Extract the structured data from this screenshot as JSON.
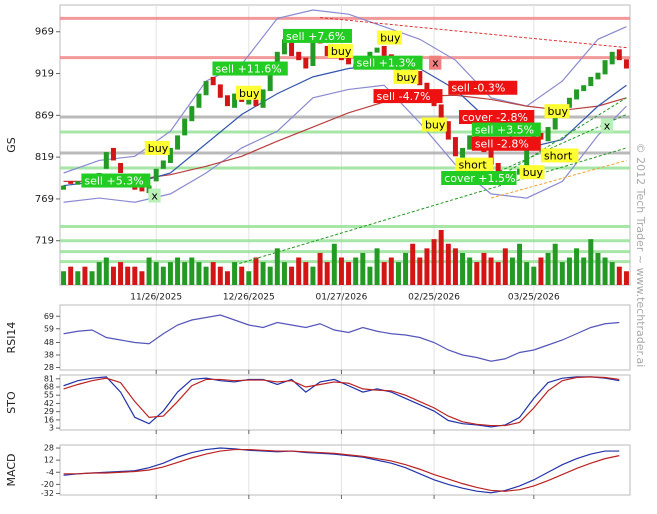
{
  "watermark": "© 2012 Tech Trader ~ www.techtrader.ai",
  "chart_data": [
    {
      "type": "candlestick",
      "y_label": "GS",
      "xlim": [
        -0.5,
        79.5
      ],
      "xticks": [
        {
          "value": 13,
          "label": "11/26/2025"
        },
        {
          "value": 26,
          "label": "12/26/2025"
        },
        {
          "value": 39,
          "label": "01/27/2026"
        },
        {
          "value": 52,
          "label": "02/25/2026"
        },
        {
          "value": 66,
          "label": "03/25/2026"
        }
      ],
      "ylim": [
        666,
        1001
      ],
      "yticks": [
        719,
        769,
        819,
        869,
        919,
        969
      ],
      "up_color": "#239a23",
      "down_color": "#d41515",
      "open": [
        780,
        790,
        786,
        795,
        790,
        796,
        805,
        830,
        812,
        798,
        792,
        784,
        776,
        790,
        805,
        812,
        828,
        845,
        862,
        878,
        893,
        915,
        906,
        893,
        878,
        898,
        882,
        903,
        878,
        898,
        918,
        942,
        962,
        945,
        938,
        928,
        962,
        952,
        938,
        948,
        938,
        926,
        928,
        935,
        944,
        952,
        942,
        922,
        928,
        938,
        922,
        908,
        898,
        882,
        862,
        843,
        818,
        828,
        848,
        842,
        828,
        812,
        802,
        792,
        798,
        804,
        828,
        848,
        838,
        852,
        868,
        878,
        888,
        898,
        904,
        912,
        918,
        930,
        948,
        936
      ],
      "close": [
        785,
        787,
        790,
        792,
        795,
        800,
        825,
        815,
        800,
        790,
        780,
        778,
        785,
        805,
        815,
        830,
        845,
        865,
        880,
        895,
        910,
        905,
        890,
        880,
        895,
        885,
        900,
        880,
        900,
        920,
        945,
        960,
        940,
        935,
        925,
        960,
        955,
        940,
        945,
        935,
        930,
        930,
        935,
        945,
        950,
        940,
        925,
        930,
        935,
        920,
        905,
        895,
        880,
        860,
        840,
        820,
        830,
        845,
        840,
        825,
        810,
        800,
        795,
        800,
        805,
        830,
        845,
        840,
        855,
        870,
        880,
        890,
        900,
        905,
        915,
        920,
        935,
        945,
        935,
        925
      ],
      "volume": [
        3,
        4,
        3,
        4,
        3,
        5,
        6,
        4,
        5,
        4,
        4,
        3,
        6,
        5,
        4,
        5,
        6,
        5,
        6,
        5,
        4,
        5,
        4,
        3,
        5,
        4,
        3,
        6,
        5,
        4,
        8,
        5,
        4,
        6,
        5,
        4,
        7,
        5,
        9,
        6,
        5,
        6,
        7,
        4,
        8,
        5,
        6,
        5,
        7,
        9,
        6,
        8,
        10,
        12,
        9,
        8,
        7,
        6,
        5,
        7,
        6,
        5,
        8,
        6,
        9,
        5,
        4,
        6,
        7,
        9,
        5,
        6,
        8,
        6,
        10,
        7,
        6,
        5,
        4,
        3
      ],
      "levels": [
        {
          "value": 985,
          "color": "#f08080"
        },
        {
          "value": 938,
          "color": "#f08080"
        },
        {
          "value": 867,
          "color": "#aaaaaa"
        },
        {
          "value": 824,
          "color": "#aaaaaa"
        },
        {
          "value": 806,
          "color": "#90e090"
        },
        {
          "value": 849,
          "color": "#90e090"
        },
        {
          "value": 736,
          "color": "#90e090"
        },
        {
          "value": 719,
          "color": "#90e090"
        },
        {
          "value": 706,
          "color": "#90e090"
        },
        {
          "value": 694,
          "color": "#90e090"
        }
      ],
      "lines": [
        {
          "color": "#8a8ad0",
          "x": [
            0,
            5,
            10,
            15,
            20,
            25,
            30,
            35,
            40,
            45,
            50,
            55,
            60,
            65,
            70,
            75,
            79
          ],
          "values": [
            800,
            815,
            820,
            850,
            910,
            930,
            985,
            995,
            990,
            975,
            960,
            935,
            890,
            880,
            910,
            960,
            975
          ]
        },
        {
          "color": "#8a8ad0",
          "x": [
            0,
            5,
            10,
            15,
            20,
            25,
            30,
            35,
            40,
            45,
            50,
            55,
            60,
            65,
            70,
            75,
            79
          ],
          "values": [
            765,
            770,
            765,
            775,
            800,
            830,
            850,
            890,
            900,
            905,
            860,
            810,
            775,
            770,
            790,
            845,
            880
          ]
        },
        {
          "color": "#b84040",
          "x": [
            0,
            5,
            10,
            15,
            20,
            25,
            30,
            35,
            40,
            45,
            50,
            55,
            60,
            65,
            70,
            75,
            79
          ],
          "values": [
            790,
            790,
            792,
            798,
            808,
            820,
            838,
            855,
            872,
            885,
            892,
            893,
            888,
            880,
            875,
            880,
            890
          ]
        },
        {
          "color": "#3355aa",
          "x": [
            0,
            5,
            10,
            15,
            20,
            25,
            30,
            35,
            40,
            45,
            50,
            55,
            60,
            65,
            70,
            75,
            79
          ],
          "values": [
            785,
            790,
            788,
            800,
            835,
            870,
            895,
            915,
            925,
            930,
            925,
            900,
            860,
            830,
            840,
            880,
            905
          ]
        }
      ],
      "trendlines": [
        {
          "x1": 36,
          "y1": 986,
          "x2": 79,
          "y2": 950,
          "color": "#dd3333"
        },
        {
          "x1": 24,
          "y1": 690,
          "x2": 79,
          "y2": 830,
          "color": "#229922"
        },
        {
          "x1": 58,
          "y1": 790,
          "x2": 79,
          "y2": 870,
          "color": "#229922"
        },
        {
          "x1": 62,
          "y1": 800,
          "x2": 79,
          "y2": 890,
          "color": "#229922"
        },
        {
          "x1": 60,
          "y1": 770,
          "x2": 79,
          "y2": 815,
          "color": "#f0a030"
        }
      ],
      "annotations": [
        {
          "text": "buy",
          "x": 11.4,
          "y": 830,
          "color": "#ffff33",
          "text_color": "#000000"
        },
        {
          "text": "sell +5.3%",
          "x": 2.5,
          "y": 791,
          "color": "#22cc22",
          "text_color": "#ffffff"
        },
        {
          "text": "x",
          "x": 11.9,
          "y": 773,
          "color": "#b8f0b8",
          "text_color": "#000000"
        },
        {
          "text": "sell +11.6%",
          "x": 20.9,
          "y": 925,
          "color": "#22cc22",
          "text_color": "#ffffff"
        },
        {
          "text": "buy",
          "x": 24.2,
          "y": 896,
          "color": "#ffff33",
          "text_color": "#000000"
        },
        {
          "text": "sell +7.6%",
          "x": 30.8,
          "y": 964,
          "color": "#22cc22",
          "text_color": "#ffffff"
        },
        {
          "text": "buy",
          "x": 37.1,
          "y": 946,
          "color": "#ffff33",
          "text_color": "#000000"
        },
        {
          "text": "buy",
          "x": 44,
          "y": 962,
          "color": "#ffff33",
          "text_color": "#000000"
        },
        {
          "text": "sell +1.3%",
          "x": 40.7,
          "y": 932,
          "color": "#22cc22",
          "text_color": "#ffffff"
        },
        {
          "text": "buy",
          "x": 46.3,
          "y": 915,
          "color": "#ffff33",
          "text_color": "#000000"
        },
        {
          "text": "x",
          "x": 51.3,
          "y": 932,
          "color": "#f08080",
          "text_color": "#000000"
        },
        {
          "text": "sell -4.7%",
          "x": 43.5,
          "y": 892,
          "color": "#ee1111",
          "text_color": "#ffffff"
        },
        {
          "text": "sell -0.3%",
          "x": 54,
          "y": 902,
          "color": "#ee1111",
          "text_color": "#ffffff"
        },
        {
          "text": "buy",
          "x": 50.3,
          "y": 858,
          "color": "#ffff33",
          "text_color": "#000000"
        },
        {
          "text": "cover -2.8%",
          "x": 55.5,
          "y": 867,
          "color": "#ee1111",
          "text_color": "#ffffff"
        },
        {
          "text": "sell +3.5%",
          "x": 57.3,
          "y": 852,
          "color": "#22cc22",
          "text_color": "#ffffff"
        },
        {
          "text": "sell -2.8%",
          "x": 57.3,
          "y": 835,
          "color": "#ee1111",
          "text_color": "#ffffff"
        },
        {
          "text": "short",
          "x": 55,
          "y": 810,
          "color": "#ffff33",
          "text_color": "#000000"
        },
        {
          "text": "cover +1.5%",
          "x": 53,
          "y": 794,
          "color": "#22cc22",
          "text_color": "#ffffff"
        },
        {
          "text": "buy",
          "x": 67.5,
          "y": 874,
          "color": "#ffff33",
          "text_color": "#000000"
        },
        {
          "text": "short",
          "x": 67,
          "y": 821,
          "color": "#ffff33",
          "text_color": "#000000"
        },
        {
          "text": "buy",
          "x": 64,
          "y": 801,
          "color": "#ffff33",
          "text_color": "#000000"
        },
        {
          "text": "x",
          "x": 75.4,
          "y": 857,
          "color": "#b8f0b8",
          "text_color": "#000000"
        }
      ]
    },
    {
      "type": "line",
      "y_label": "RSI14",
      "ylim": [
        26,
        78
      ],
      "yticks": [
        28,
        38,
        48,
        59,
        69
      ],
      "xlim": [
        -0.5,
        79.5
      ],
      "x": [
        0,
        2,
        4,
        6,
        8,
        10,
        12,
        14,
        16,
        18,
        20,
        22,
        24,
        26,
        28,
        30,
        32,
        34,
        36,
        38,
        40,
        42,
        44,
        46,
        48,
        50,
        52,
        54,
        56,
        58,
        60,
        62,
        64,
        66,
        68,
        70,
        72,
        74,
        76,
        78
      ],
      "series": [
        {
          "color": "#5555bb",
          "values": [
            55,
            57,
            58,
            52,
            50,
            48,
            47,
            55,
            62,
            66,
            68,
            70,
            66,
            62,
            60,
            64,
            62,
            60,
            63,
            58,
            56,
            60,
            57,
            55,
            54,
            52,
            48,
            42,
            38,
            36,
            33,
            35,
            40,
            42,
            46,
            50,
            55,
            60,
            63,
            64
          ]
        }
      ]
    },
    {
      "type": "line",
      "y_label": "STO",
      "ylim": [
        0,
        87
      ],
      "yticks": [
        3,
        16,
        29,
        42,
        55,
        68,
        81
      ],
      "xlim": [
        -0.5,
        79.5
      ],
      "x": [
        0,
        2,
        4,
        6,
        8,
        10,
        12,
        14,
        16,
        18,
        20,
        22,
        24,
        26,
        28,
        30,
        32,
        34,
        36,
        38,
        40,
        42,
        44,
        46,
        48,
        50,
        52,
        54,
        56,
        58,
        60,
        62,
        64,
        66,
        68,
        70,
        72,
        74,
        76,
        78
      ],
      "series": [
        {
          "color": "#2233aa",
          "values": [
            70,
            78,
            82,
            84,
            60,
            20,
            10,
            30,
            60,
            80,
            82,
            78,
            76,
            80,
            80,
            72,
            80,
            60,
            76,
            80,
            70,
            60,
            65,
            60,
            50,
            40,
            30,
            15,
            10,
            8,
            5,
            8,
            20,
            50,
            75,
            82,
            84,
            84,
            82,
            78
          ]
        },
        {
          "color": "#bb2222",
          "values": [
            65,
            72,
            78,
            82,
            75,
            45,
            20,
            22,
            45,
            70,
            80,
            80,
            78,
            79,
            79,
            76,
            78,
            68,
            72,
            76,
            74,
            65,
            63,
            62,
            55,
            45,
            35,
            22,
            13,
            9,
            7,
            7,
            12,
            35,
            62,
            78,
            83,
            84,
            83,
            80
          ]
        }
      ]
    },
    {
      "type": "line",
      "y_label": "MACD",
      "ylim": [
        -34,
        32
      ],
      "yticks": [
        28,
        12,
        -4,
        -20,
        -32
      ],
      "xlim": [
        -0.5,
        79.5
      ],
      "x": [
        0,
        2,
        4,
        6,
        8,
        10,
        12,
        14,
        16,
        18,
        20,
        22,
        24,
        26,
        28,
        30,
        32,
        34,
        36,
        38,
        40,
        42,
        44,
        46,
        48,
        50,
        52,
        54,
        56,
        58,
        60,
        62,
        64,
        66,
        68,
        70,
        72,
        74,
        76,
        78
      ],
      "series": [
        {
          "color": "#2233aa",
          "values": [
            -8,
            -6,
            -5,
            -4,
            -3,
            -2,
            2,
            8,
            16,
            22,
            26,
            28,
            27,
            25,
            24,
            23,
            24,
            22,
            21,
            20,
            18,
            16,
            12,
            8,
            2,
            -6,
            -14,
            -20,
            -25,
            -29,
            -31,
            -28,
            -22,
            -14,
            -4,
            6,
            14,
            20,
            24,
            24
          ]
        },
        {
          "color": "#bb2222",
          "values": [
            -6,
            -6,
            -5,
            -5,
            -4,
            -3,
            -1,
            3,
            9,
            15,
            20,
            24,
            26,
            26,
            25,
            24,
            24,
            23,
            22,
            21,
            19,
            17,
            14,
            11,
            6,
            0,
            -7,
            -13,
            -19,
            -24,
            -28,
            -29,
            -27,
            -22,
            -15,
            -7,
            1,
            8,
            14,
            18
          ]
        }
      ]
    }
  ]
}
